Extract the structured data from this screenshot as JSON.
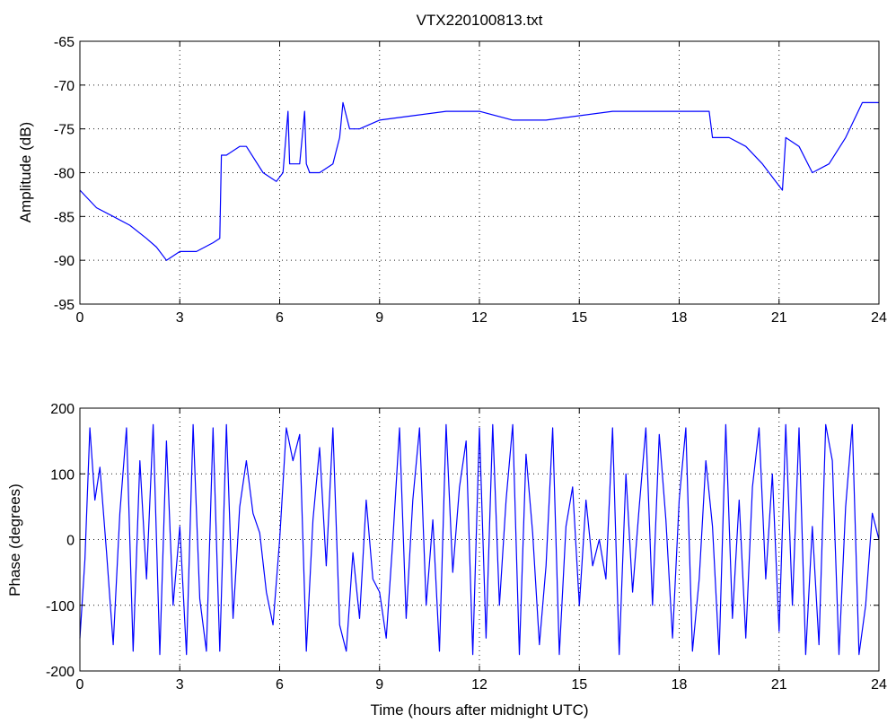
{
  "chart_data": [
    {
      "type": "line",
      "title": "VTX220100813.txt",
      "xlabel": "",
      "ylabel": "Amplitude (dB)",
      "xlim": [
        0,
        24
      ],
      "ylim": [
        -95,
        -65
      ],
      "xticks": [
        0,
        3,
        6,
        9,
        12,
        15,
        18,
        21,
        24
      ],
      "yticks": [
        -95,
        -90,
        -85,
        -80,
        -75,
        -70,
        -65
      ],
      "grid": true,
      "color": "#0000ff",
      "series": [
        {
          "x": [
            0,
            0.5,
            1,
            1.5,
            2,
            2.3,
            2.6,
            3,
            3.5,
            4,
            4.2,
            4.25,
            4.4,
            4.8,
            5,
            5.5,
            5.9,
            6.1,
            6.25,
            6.3,
            6.4,
            6.6,
            6.75,
            6.8,
            6.9,
            7.2,
            7.6,
            7.8,
            7.9,
            8.1,
            8.4,
            9,
            10,
            11,
            12,
            13,
            14,
            15,
            16,
            17,
            18,
            18.9,
            19,
            19.5,
            20,
            20.5,
            21,
            21.1,
            21.2,
            21.6,
            22,
            22.5,
            23,
            23.5,
            24
          ],
          "y": [
            -82,
            -84,
            -85,
            -86,
            -87.5,
            -88.5,
            -90,
            -89,
            -89,
            -88,
            -87.5,
            -78,
            -78,
            -77,
            -77,
            -80,
            -81,
            -80,
            -73,
            -79,
            -79,
            -79,
            -73,
            -79,
            -80,
            -80,
            -79,
            -76,
            -72,
            -75,
            -75,
            -74,
            -73.5,
            -73,
            -73,
            -74,
            -74,
            -73.5,
            -73,
            -73,
            -73,
            -73,
            -76,
            -76,
            -77,
            -79,
            -81.5,
            -82,
            -76,
            -77,
            -80,
            -79,
            -76,
            -72,
            -72
          ]
        }
      ]
    },
    {
      "type": "line",
      "title": "",
      "xlabel": "Time (hours after midnight UTC)",
      "ylabel": "Phase (degrees)",
      "xlim": [
        0,
        24
      ],
      "ylim": [
        -200,
        200
      ],
      "xticks": [
        0,
        3,
        6,
        9,
        12,
        15,
        18,
        21,
        24
      ],
      "yticks": [
        -200,
        -100,
        0,
        100,
        200
      ],
      "grid": true,
      "color": "#0000ff",
      "series": [
        {
          "x": [
            0,
            0.15,
            0.3,
            0.45,
            0.6,
            0.8,
            1,
            1.2,
            1.4,
            1.6,
            1.8,
            2,
            2.2,
            2.4,
            2.6,
            2.8,
            3,
            3.2,
            3.4,
            3.6,
            3.8,
            4,
            4.2,
            4.4,
            4.6,
            4.8,
            5,
            5.2,
            5.4,
            5.6,
            5.8,
            6,
            6.2,
            6.4,
            6.6,
            6.8,
            7,
            7.2,
            7.4,
            7.6,
            7.8,
            8,
            8.2,
            8.4,
            8.6,
            8.8,
            9,
            9.2,
            9.4,
            9.6,
            9.8,
            10,
            10.2,
            10.4,
            10.6,
            10.8,
            11,
            11.2,
            11.4,
            11.6,
            11.8,
            12,
            12.2,
            12.4,
            12.6,
            12.8,
            13,
            13.2,
            13.4,
            13.6,
            13.8,
            14,
            14.2,
            14.4,
            14.6,
            14.8,
            15,
            15.2,
            15.4,
            15.6,
            15.8,
            16,
            16.2,
            16.4,
            16.6,
            16.8,
            17,
            17.2,
            17.4,
            17.6,
            17.8,
            18,
            18.2,
            18.4,
            18.6,
            18.8,
            19,
            19.2,
            19.4,
            19.6,
            19.8,
            20,
            20.2,
            20.4,
            20.6,
            20.8,
            21,
            21.2,
            21.4,
            21.6,
            21.8,
            22,
            22.2,
            22.4,
            22.6,
            22.8,
            23,
            23.2,
            23.4,
            23.6,
            23.8,
            24
          ],
          "y": [
            -150,
            -30,
            170,
            60,
            110,
            -20,
            -160,
            40,
            170,
            -170,
            120,
            -60,
            175,
            -175,
            150,
            -100,
            20,
            -175,
            175,
            -90,
            -170,
            170,
            -170,
            175,
            -120,
            50,
            120,
            40,
            10,
            -80,
            -130,
            0,
            170,
            120,
            160,
            -170,
            30,
            140,
            -40,
            170,
            -130,
            -170,
            -20,
            -120,
            60,
            -60,
            -80,
            -150,
            0,
            170,
            -120,
            60,
            170,
            -100,
            30,
            -170,
            175,
            -50,
            80,
            150,
            -175,
            170,
            -150,
            175,
            -100,
            60,
            175,
            -175,
            130,
            10,
            -160,
            -40,
            170,
            -175,
            20,
            80,
            -100,
            60,
            -40,
            0,
            -60,
            170,
            -175,
            100,
            -80,
            50,
            170,
            -100,
            160,
            30,
            -150,
            60,
            170,
            -170,
            -60,
            120,
            20,
            -175,
            175,
            -120,
            60,
            -150,
            80,
            170,
            -60,
            100,
            -140,
            175,
            -100,
            170,
            -175,
            20,
            -160,
            175,
            120,
            -175,
            50,
            175,
            -175,
            -100,
            40,
            0
          ]
        }
      ]
    }
  ]
}
